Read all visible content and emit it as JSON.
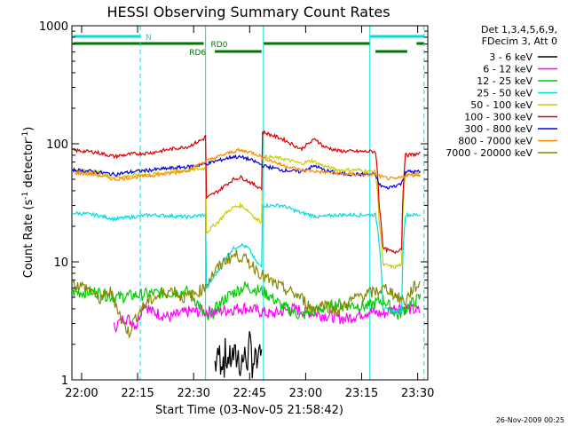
{
  "chart_data": {
    "type": "line",
    "title": "HESSI Observing Summary Count Rates",
    "xlabel": "Start Time (03-Nov-05 21:58:42)",
    "ylabel_main": "Count Rate (s",
    "ylabel_sup1": "-1",
    "ylabel_mid": " detector",
    "ylabel_sup2": "-1",
    "ylabel_end": ")",
    "yscale": "log",
    "ylim": [
      1,
      1000
    ],
    "xlim_min": [
      -1.3,
      94
    ],
    "x_ticks": [
      {
        "v": 1.3,
        "label": "22:00"
      },
      {
        "v": 16.3,
        "label": "22:15"
      },
      {
        "v": 31.3,
        "label": "22:30"
      },
      {
        "v": 46.3,
        "label": "22:45"
      },
      {
        "v": 61.3,
        "label": "23:00"
      },
      {
        "v": 76.3,
        "label": "23:15"
      },
      {
        "v": 91.3,
        "label": "23:30"
      }
    ],
    "y_ticks": [
      {
        "v": 1,
        "label": "1"
      },
      {
        "v": 10,
        "label": "10"
      },
      {
        "v": 100,
        "label": "100"
      },
      {
        "v": 1000,
        "label": "1000"
      }
    ],
    "legend_header": [
      "Det 1,3,4,5,6,9,",
      "FDecim 3, Att 0"
    ],
    "series": [
      {
        "name": "3 - 6 keV",
        "color": "#000000",
        "points": [
          [
            37,
            1.5
          ],
          [
            38,
            1.9
          ],
          [
            40,
            1.6
          ],
          [
            42,
            1.9
          ],
          [
            44,
            1.5
          ],
          [
            46,
            1.9
          ],
          [
            48,
            1.6
          ],
          [
            49.5,
            1.8
          ]
        ]
      },
      {
        "name": "6 - 12 keV",
        "color": "#ff00ff",
        "points": [
          [
            10,
            2.8
          ],
          [
            13,
            3.4
          ],
          [
            16,
            2.9
          ],
          [
            18,
            4.5
          ],
          [
            20,
            3.8
          ],
          [
            25,
            3.4
          ],
          [
            30,
            3.8
          ],
          [
            37,
            3.8
          ],
          [
            45,
            4.1
          ],
          [
            52,
            3.6
          ],
          [
            58,
            4.0
          ],
          [
            65,
            3.6
          ],
          [
            72,
            3.3
          ],
          [
            78,
            3.8
          ],
          [
            82,
            3.6
          ],
          [
            86,
            4.2
          ],
          [
            89,
            4.0
          ],
          [
            92,
            3.8
          ]
        ]
      },
      {
        "name": "12 - 25 keV",
        "color": "#00cc00",
        "points": [
          [
            -1,
            5.5
          ],
          [
            5,
            5.6
          ],
          [
            10,
            5.0
          ],
          [
            20,
            5.4
          ],
          [
            30,
            5.6
          ],
          [
            35,
            3.2
          ],
          [
            40,
            5.0
          ],
          [
            45,
            6.2
          ],
          [
            50,
            5.6
          ],
          [
            55,
            4.2
          ],
          [
            60,
            3.5
          ],
          [
            70,
            4.4
          ],
          [
            78,
            4.2
          ],
          [
            82,
            4.8
          ],
          [
            86,
            3.5
          ],
          [
            89,
            4.3
          ],
          [
            92,
            5.0
          ]
        ]
      },
      {
        "name": "25 - 50 keV",
        "color": "#00dddd",
        "points": [
          [
            -1,
            26
          ],
          [
            5,
            25
          ],
          [
            10,
            23
          ],
          [
            15,
            24
          ],
          [
            20,
            25
          ],
          [
            30,
            24
          ],
          [
            34.5,
            25
          ],
          [
            35,
            6.0
          ],
          [
            38,
            8.5
          ],
          [
            40,
            11
          ],
          [
            42,
            13
          ],
          [
            44,
            14
          ],
          [
            46,
            13
          ],
          [
            48,
            10
          ],
          [
            49.5,
            9
          ],
          [
            50,
            30
          ],
          [
            55,
            30
          ],
          [
            60,
            26
          ],
          [
            65,
            24
          ],
          [
            70,
            25
          ],
          [
            76,
            25
          ],
          [
            80,
            25
          ],
          [
            82,
            4.0
          ],
          [
            85,
            3.8
          ],
          [
            87,
            3.8
          ],
          [
            88,
            25
          ],
          [
            92,
            25
          ]
        ]
      },
      {
        "name": "50 - 100 keV",
        "color": "#cccc00",
        "points": [
          [
            -1,
            60
          ],
          [
            5,
            58
          ],
          [
            10,
            52
          ],
          [
            15,
            54
          ],
          [
            20,
            55
          ],
          [
            25,
            58
          ],
          [
            30,
            60
          ],
          [
            34.5,
            62
          ],
          [
            35,
            18
          ],
          [
            38,
            22
          ],
          [
            40,
            26
          ],
          [
            42,
            29
          ],
          [
            44,
            30
          ],
          [
            46,
            27
          ],
          [
            48,
            23
          ],
          [
            49.5,
            22
          ],
          [
            50,
            78
          ],
          [
            55,
            75
          ],
          [
            60,
            68
          ],
          [
            63,
            72
          ],
          [
            66,
            65
          ],
          [
            70,
            60
          ],
          [
            75,
            60
          ],
          [
            80,
            58
          ],
          [
            81,
            22
          ],
          [
            82,
            9.5
          ],
          [
            85,
            9.0
          ],
          [
            87,
            9.5
          ],
          [
            88,
            56
          ],
          [
            92,
            56
          ]
        ]
      },
      {
        "name": "100 - 300 keV",
        "color": "#dd0000",
        "points": [
          [
            -1,
            88
          ],
          [
            5,
            85
          ],
          [
            10,
            78
          ],
          [
            15,
            82
          ],
          [
            20,
            84
          ],
          [
            25,
            90
          ],
          [
            30,
            95
          ],
          [
            34,
            110
          ],
          [
            34.5,
            115
          ],
          [
            35,
            35
          ],
          [
            38,
            40
          ],
          [
            40,
            45
          ],
          [
            42,
            50
          ],
          [
            44,
            52
          ],
          [
            46,
            48
          ],
          [
            48,
            44
          ],
          [
            49.5,
            42
          ],
          [
            50,
            125
          ],
          [
            55,
            110
          ],
          [
            60,
            90
          ],
          [
            62,
            100
          ],
          [
            64,
            110
          ],
          [
            66,
            95
          ],
          [
            70,
            87
          ],
          [
            75,
            86
          ],
          [
            80,
            86
          ],
          [
            81,
            30
          ],
          [
            82,
            13
          ],
          [
            85,
            12
          ],
          [
            87,
            13
          ],
          [
            88,
            80
          ],
          [
            92,
            82
          ]
        ]
      },
      {
        "name": "300 - 800 keV",
        "color": "#0000dd",
        "points": [
          [
            -1,
            60
          ],
          [
            5,
            58
          ],
          [
            10,
            55
          ],
          [
            15,
            58
          ],
          [
            20,
            60
          ],
          [
            25,
            62
          ],
          [
            30,
            64
          ],
          [
            35,
            68
          ],
          [
            40,
            75
          ],
          [
            42,
            78
          ],
          [
            45,
            76
          ],
          [
            48,
            70
          ],
          [
            50,
            65
          ],
          [
            55,
            60
          ],
          [
            60,
            58
          ],
          [
            62,
            62
          ],
          [
            64,
            65
          ],
          [
            66,
            60
          ],
          [
            70,
            56
          ],
          [
            75,
            55
          ],
          [
            80,
            55
          ],
          [
            81,
            45
          ],
          [
            83,
            42
          ],
          [
            85,
            44
          ],
          [
            87,
            46
          ],
          [
            88,
            58
          ],
          [
            92,
            58
          ]
        ]
      },
      {
        "name": "800 - 7000 keV",
        "color": "#ff8800",
        "points": [
          [
            -1,
            57
          ],
          [
            5,
            55
          ],
          [
            10,
            50
          ],
          [
            15,
            52
          ],
          [
            20,
            54
          ],
          [
            25,
            56
          ],
          [
            30,
            60
          ],
          [
            35,
            72
          ],
          [
            40,
            82
          ],
          [
            43,
            88
          ],
          [
            46,
            86
          ],
          [
            48,
            82
          ],
          [
            50,
            76
          ],
          [
            55,
            66
          ],
          [
            60,
            60
          ],
          [
            65,
            58
          ],
          [
            70,
            56
          ],
          [
            75,
            55
          ],
          [
            80,
            55
          ],
          [
            82,
            52
          ],
          [
            85,
            50
          ],
          [
            87,
            52
          ],
          [
            88,
            54
          ],
          [
            92,
            55
          ]
        ]
      },
      {
        "name": "7000 - 20000 keV",
        "color": "#888800",
        "points": [
          [
            -1,
            6.5
          ],
          [
            3,
            6.0
          ],
          [
            6,
            4.8
          ],
          [
            9,
            5.6
          ],
          [
            12,
            3.2
          ],
          [
            14,
            2.5
          ],
          [
            16,
            3.5
          ],
          [
            19,
            4.6
          ],
          [
            23,
            5.4
          ],
          [
            26,
            5.8
          ],
          [
            28,
            5.0
          ],
          [
            31,
            5.2
          ],
          [
            34,
            6.0
          ],
          [
            36,
            7.5
          ],
          [
            40,
            10.5
          ],
          [
            43,
            11.5
          ],
          [
            46,
            10
          ],
          [
            48,
            8.8
          ],
          [
            50,
            7.5
          ],
          [
            53,
            6.5
          ],
          [
            56,
            5.8
          ],
          [
            60,
            5.0
          ],
          [
            63,
            4.0
          ],
          [
            66,
            4.4
          ],
          [
            70,
            3.8
          ],
          [
            73,
            4.6
          ],
          [
            76,
            5.2
          ],
          [
            80,
            5.6
          ],
          [
            83,
            6.0
          ],
          [
            86,
            5.0
          ],
          [
            88,
            4.6
          ],
          [
            90,
            6.0
          ],
          [
            92,
            6.5
          ]
        ]
      }
    ],
    "markers": [
      {
        "label": "N",
        "color": "#00dddd",
        "segments": [
          [
            -1,
            17
          ],
          [
            78.5,
            93
          ]
        ],
        "level": 1
      },
      {
        "label": "RD0",
        "color": "#007700",
        "segments": [
          [
            -1,
            34
          ],
          [
            50,
            78.5
          ],
          [
            91,
            93
          ]
        ],
        "level": 2
      },
      {
        "label": "RD6",
        "color": "#007700",
        "segments": [
          [
            37,
            49.5
          ],
          [
            80,
            88.5
          ]
        ],
        "level": 3
      }
    ],
    "vlines": [
      {
        "v": 17,
        "style": "dashed",
        "color": "#00dddd"
      },
      {
        "v": 34.5,
        "style": "solid",
        "color": "#00dddd"
      },
      {
        "v": 50,
        "style": "solid",
        "color": "#00dddd"
      },
      {
        "v": 78.5,
        "style": "solid",
        "color": "#00dddd"
      },
      {
        "v": 93,
        "style": "dashed",
        "color": "#00dddd"
      }
    ],
    "grid": false,
    "legend_position": "right"
  },
  "stamp": "26-Nov-2009 00:25"
}
